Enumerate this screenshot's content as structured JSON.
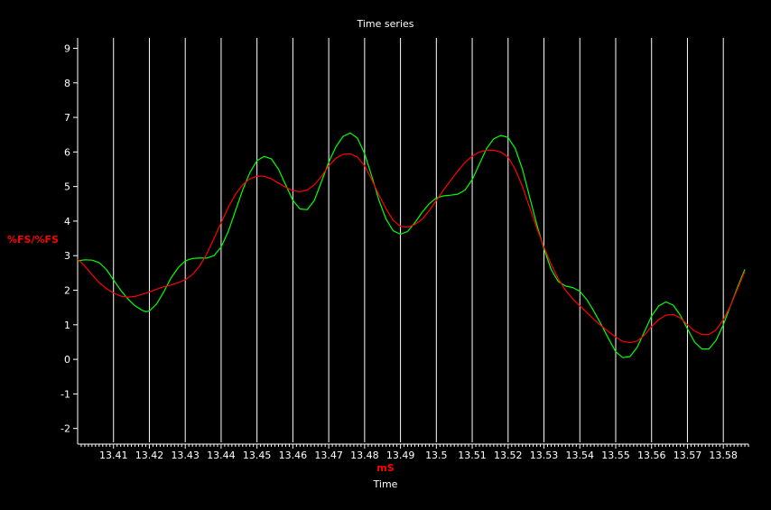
{
  "chart_data": {
    "type": "line",
    "title": "Time series",
    "xlabel_unit": "mS",
    "xlabel": "Time",
    "ylabel": "%FS/%FS",
    "xlim": [
      13.4,
      13.587
    ],
    "ylim": [
      -2.4,
      9.3
    ],
    "x_ticks": [
      13.41,
      13.42,
      13.43,
      13.44,
      13.45,
      13.46,
      13.47,
      13.48,
      13.49,
      13.5,
      13.51,
      13.52,
      13.53,
      13.54,
      13.55,
      13.56,
      13.57,
      13.58
    ],
    "x_tick_labels": [
      "13.41",
      "13.42",
      "13.43",
      "13.44",
      "13.45",
      "13.46",
      "13.47",
      "13.48",
      "13.49",
      "13.5",
      "13.51",
      "13.52",
      "13.53",
      "13.54",
      "13.55",
      "13.56",
      "13.57",
      "13.58"
    ],
    "y_ticks": [
      -2,
      -1,
      0,
      1,
      2,
      3,
      4,
      5,
      6,
      7,
      8,
      9
    ],
    "grid": {
      "vertical": true,
      "horizontal": false
    },
    "colors": {
      "background": "#000000",
      "grid": "#ffffff",
      "axis": "#ffffff",
      "text": "#ffffff",
      "accent": "#ff0000"
    },
    "series": [
      {
        "color": "#00ff00",
        "points": [
          [
            13.4,
            2.85
          ],
          [
            13.402,
            2.88
          ],
          [
            13.404,
            2.87
          ],
          [
            13.406,
            2.8
          ],
          [
            13.408,
            2.6
          ],
          [
            13.41,
            2.3
          ],
          [
            13.412,
            2.0
          ],
          [
            13.414,
            1.75
          ],
          [
            13.416,
            1.55
          ],
          [
            13.418,
            1.42
          ],
          [
            13.419,
            1.38
          ],
          [
            13.42,
            1.4
          ],
          [
            13.422,
            1.6
          ],
          [
            13.424,
            1.95
          ],
          [
            13.426,
            2.35
          ],
          [
            13.428,
            2.65
          ],
          [
            13.43,
            2.85
          ],
          [
            13.432,
            2.92
          ],
          [
            13.434,
            2.93
          ],
          [
            13.436,
            2.93
          ],
          [
            13.438,
            3.0
          ],
          [
            13.44,
            3.25
          ],
          [
            13.442,
            3.7
          ],
          [
            13.444,
            4.3
          ],
          [
            13.446,
            4.9
          ],
          [
            13.448,
            5.4
          ],
          [
            13.45,
            5.75
          ],
          [
            13.452,
            5.87
          ],
          [
            13.454,
            5.8
          ],
          [
            13.456,
            5.5
          ],
          [
            13.458,
            5.05
          ],
          [
            13.46,
            4.6
          ],
          [
            13.462,
            4.35
          ],
          [
            13.464,
            4.33
          ],
          [
            13.466,
            4.6
          ],
          [
            13.468,
            5.15
          ],
          [
            13.47,
            5.7
          ],
          [
            13.472,
            6.15
          ],
          [
            13.474,
            6.45
          ],
          [
            13.476,
            6.55
          ],
          [
            13.478,
            6.4
          ],
          [
            13.48,
            5.95
          ],
          [
            13.482,
            5.3
          ],
          [
            13.484,
            4.6
          ],
          [
            13.486,
            4.05
          ],
          [
            13.488,
            3.72
          ],
          [
            13.49,
            3.62
          ],
          [
            13.492,
            3.7
          ],
          [
            13.494,
            3.95
          ],
          [
            13.496,
            4.25
          ],
          [
            13.498,
            4.5
          ],
          [
            13.5,
            4.67
          ],
          [
            13.502,
            4.73
          ],
          [
            13.504,
            4.75
          ],
          [
            13.506,
            4.78
          ],
          [
            13.508,
            4.9
          ],
          [
            13.51,
            5.2
          ],
          [
            13.512,
            5.65
          ],
          [
            13.514,
            6.1
          ],
          [
            13.516,
            6.38
          ],
          [
            13.518,
            6.48
          ],
          [
            13.52,
            6.42
          ],
          [
            13.522,
            6.1
          ],
          [
            13.524,
            5.5
          ],
          [
            13.526,
            4.7
          ],
          [
            13.528,
            3.9
          ],
          [
            13.53,
            3.2
          ],
          [
            13.532,
            2.6
          ],
          [
            13.534,
            2.25
          ],
          [
            13.536,
            2.12
          ],
          [
            13.538,
            2.08
          ],
          [
            13.54,
            1.97
          ],
          [
            13.542,
            1.72
          ],
          [
            13.544,
            1.38
          ],
          [
            13.546,
            1.0
          ],
          [
            13.548,
            0.6
          ],
          [
            13.55,
            0.22
          ],
          [
            13.552,
            0.05
          ],
          [
            13.554,
            0.08
          ],
          [
            13.556,
            0.35
          ],
          [
            13.558,
            0.8
          ],
          [
            13.56,
            1.25
          ],
          [
            13.562,
            1.55
          ],
          [
            13.564,
            1.66
          ],
          [
            13.566,
            1.57
          ],
          [
            13.568,
            1.28
          ],
          [
            13.57,
            0.88
          ],
          [
            13.572,
            0.5
          ],
          [
            13.574,
            0.3
          ],
          [
            13.576,
            0.3
          ],
          [
            13.578,
            0.55
          ],
          [
            13.58,
            1.0
          ],
          [
            13.582,
            1.55
          ],
          [
            13.584,
            2.1
          ],
          [
            13.586,
            2.6
          ]
        ]
      },
      {
        "color": "#ff0000",
        "points": [
          [
            13.4,
            2.9
          ],
          [
            13.402,
            2.7
          ],
          [
            13.404,
            2.45
          ],
          [
            13.406,
            2.22
          ],
          [
            13.408,
            2.05
          ],
          [
            13.41,
            1.92
          ],
          [
            13.412,
            1.83
          ],
          [
            13.414,
            1.8
          ],
          [
            13.416,
            1.82
          ],
          [
            13.418,
            1.88
          ],
          [
            13.42,
            1.95
          ],
          [
            13.422,
            2.03
          ],
          [
            13.424,
            2.1
          ],
          [
            13.426,
            2.15
          ],
          [
            13.428,
            2.22
          ],
          [
            13.43,
            2.3
          ],
          [
            13.432,
            2.45
          ],
          [
            13.434,
            2.7
          ],
          [
            13.436,
            3.05
          ],
          [
            13.438,
            3.5
          ],
          [
            13.44,
            3.95
          ],
          [
            13.442,
            4.4
          ],
          [
            13.444,
            4.78
          ],
          [
            13.446,
            5.05
          ],
          [
            13.448,
            5.22
          ],
          [
            13.45,
            5.3
          ],
          [
            13.452,
            5.3
          ],
          [
            13.454,
            5.22
          ],
          [
            13.456,
            5.1
          ],
          [
            13.458,
            4.98
          ],
          [
            13.46,
            4.88
          ],
          [
            13.462,
            4.85
          ],
          [
            13.464,
            4.9
          ],
          [
            13.466,
            5.05
          ],
          [
            13.468,
            5.3
          ],
          [
            13.47,
            5.6
          ],
          [
            13.472,
            5.82
          ],
          [
            13.474,
            5.93
          ],
          [
            13.476,
            5.95
          ],
          [
            13.478,
            5.85
          ],
          [
            13.48,
            5.6
          ],
          [
            13.482,
            5.2
          ],
          [
            13.484,
            4.75
          ],
          [
            13.486,
            4.35
          ],
          [
            13.488,
            4.02
          ],
          [
            13.49,
            3.85
          ],
          [
            13.492,
            3.82
          ],
          [
            13.494,
            3.9
          ],
          [
            13.496,
            4.05
          ],
          [
            13.498,
            4.3
          ],
          [
            13.5,
            4.6
          ],
          [
            13.502,
            4.9
          ],
          [
            13.504,
            5.18
          ],
          [
            13.506,
            5.45
          ],
          [
            13.508,
            5.7
          ],
          [
            13.51,
            5.88
          ],
          [
            13.512,
            6.0
          ],
          [
            13.514,
            6.05
          ],
          [
            13.516,
            6.05
          ],
          [
            13.518,
            6.0
          ],
          [
            13.52,
            5.85
          ],
          [
            13.522,
            5.5
          ],
          [
            13.524,
            5.0
          ],
          [
            13.526,
            4.4
          ],
          [
            13.528,
            3.8
          ],
          [
            13.53,
            3.25
          ],
          [
            13.532,
            2.75
          ],
          [
            13.534,
            2.33
          ],
          [
            13.536,
            2.0
          ],
          [
            13.538,
            1.75
          ],
          [
            13.54,
            1.55
          ],
          [
            13.542,
            1.35
          ],
          [
            13.544,
            1.15
          ],
          [
            13.546,
            0.97
          ],
          [
            13.548,
            0.8
          ],
          [
            13.55,
            0.65
          ],
          [
            13.552,
            0.52
          ],
          [
            13.554,
            0.48
          ],
          [
            13.556,
            0.53
          ],
          [
            13.558,
            0.7
          ],
          [
            13.56,
            0.95
          ],
          [
            13.562,
            1.15
          ],
          [
            13.564,
            1.28
          ],
          [
            13.566,
            1.3
          ],
          [
            13.568,
            1.2
          ],
          [
            13.57,
            1.0
          ],
          [
            13.572,
            0.82
          ],
          [
            13.574,
            0.72
          ],
          [
            13.576,
            0.72
          ],
          [
            13.578,
            0.85
          ],
          [
            13.58,
            1.15
          ],
          [
            13.582,
            1.55
          ],
          [
            13.584,
            2.05
          ],
          [
            13.586,
            2.55
          ]
        ]
      }
    ]
  }
}
